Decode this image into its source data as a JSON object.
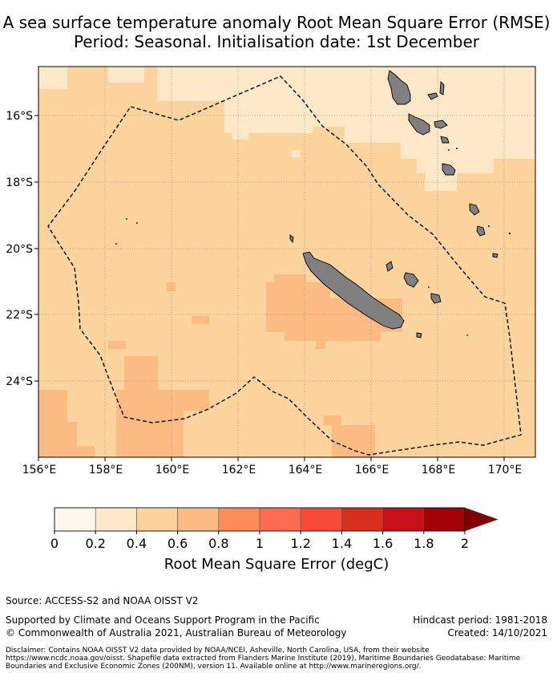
{
  "title": {
    "line1": "A sea surface temperature anomaly Root Mean Square Error (RMSE)",
    "line2": "Period: Seasonal. Initialisation date: 1st December"
  },
  "map": {
    "lon_ticks": [
      "156°E",
      "158°E",
      "160°E",
      "162°E",
      "164°E",
      "166°E",
      "168°E",
      "170°E"
    ],
    "lat_ticks": [
      "16°S",
      "18°S",
      "20°S",
      "22°S",
      "24°S"
    ],
    "land_color": "#808080",
    "field_color": "#fdd49e",
    "low_color": "#fee8c8",
    "high_color": "#fdbb84",
    "boundary_style": "dashed"
  },
  "colorbar": {
    "label": "Root Mean Square Error (degC)",
    "ticks": [
      "0",
      "0.2",
      "0.4",
      "0.6",
      "0.8",
      "1",
      "1.2",
      "1.4",
      "1.6",
      "1.8",
      "2"
    ],
    "colors": [
      "#fff7ec",
      "#fee8c8",
      "#fdd49e",
      "#fdbb84",
      "#fc8d59",
      "#fc6a4f",
      "#f94a37",
      "#d7301f",
      "#c8101a",
      "#a50009"
    ],
    "extend_color": "#7f0000"
  },
  "footer": {
    "source": "Source: ACCESS-S2 and NOAA OISST V2",
    "support": "Supported by Climate and Oceans Support Program in the Pacific",
    "copyright": "© Commonwealth of Australia 2021, Australian Bureau of Meteorology",
    "hindcast": "Hindcast period: 1981-2018",
    "created": "Created: 14/10/2021",
    "disclaimer": "Disclaimer: Contains NOAA OISST V2 data provided by NOAA/NCEI, Asheville, North Carolina, USA, from their website https://www.ncdc.noaa.gov/oisst. Shapefile data extracted from Flanders Marine Institute (2019), Maritime Boundaries Geodatabase: Maritime Boundaries and Exclusive Economic Zones (200NM), version 11. Available online at http://www.marineregions.org/."
  }
}
